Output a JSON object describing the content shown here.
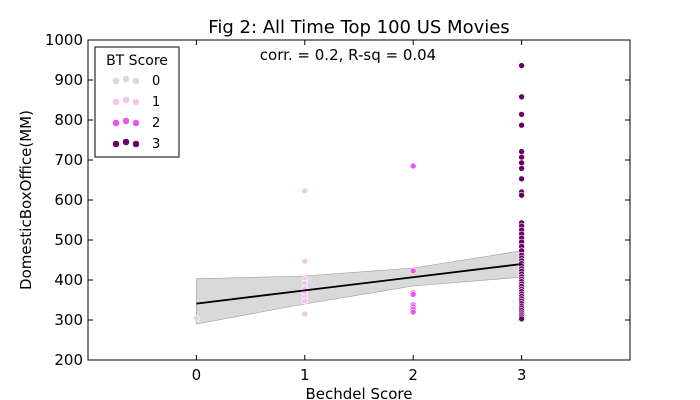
{
  "chart_data": {
    "type": "scatter",
    "title": "Fig 2: All Time Top 100 US Movies",
    "xlabel": "Bechdel  Score",
    "ylabel": "DomesticBoxOffice(MM)",
    "annotation": "corr. = 0.2, R-sq = 0.04",
    "xlim": [
      -1,
      4
    ],
    "ylim": [
      200,
      1000
    ],
    "xticks": [
      0,
      1,
      2,
      3
    ],
    "yticks": [
      200,
      300,
      400,
      500,
      600,
      700,
      800,
      900,
      1000
    ],
    "legend": {
      "title": "BT Score",
      "placement": "top-left",
      "entries": [
        {
          "label": "0",
          "color": "#d8d8e4"
        },
        {
          "label": "1",
          "color": "#f7c3f7"
        },
        {
          "label": "2",
          "color": "#ec55ec"
        },
        {
          "label": "3",
          "color": "#6a006a"
        }
      ]
    },
    "series": [
      {
        "name": "0",
        "color": "#d8d8e4",
        "x": 0,
        "y": [
          304
        ]
      },
      {
        "name": "1",
        "color": "#f7c3f7",
        "x": 1,
        "y": [
          623,
          447,
          401,
          392,
          378,
          368,
          357,
          348,
          315
        ]
      },
      {
        "name": "2",
        "color": "#ec55ec",
        "x": 2,
        "y": [
          685,
          423,
          368,
          364,
          338,
          333,
          327,
          320
        ]
      },
      {
        "name": "3",
        "color": "#6a006a",
        "x": 3,
        "y": [
          936,
          858,
          814,
          787,
          721,
          707,
          693,
          679,
          653,
          620,
          612,
          543,
          535,
          525,
          515,
          505,
          495,
          484,
          473,
          462,
          455,
          448,
          441,
          435,
          428,
          422,
          415,
          408,
          402,
          396,
          390,
          384,
          377,
          371,
          365,
          359,
          353,
          347,
          341,
          335,
          330,
          324,
          318,
          313,
          308,
          303
        ]
      }
    ],
    "regression": {
      "color": "#000000",
      "points": [
        [
          0,
          341
        ],
        [
          3,
          440
        ]
      ],
      "ci_color": "#d9d9d9",
      "ci_upper": [
        [
          0,
          403
        ],
        [
          1,
          410
        ],
        [
          2,
          430
        ],
        [
          3,
          473
        ]
      ],
      "ci_lower": [
        [
          0,
          290
        ],
        [
          1,
          340
        ],
        [
          2,
          385
        ],
        [
          3,
          407
        ]
      ]
    }
  }
}
